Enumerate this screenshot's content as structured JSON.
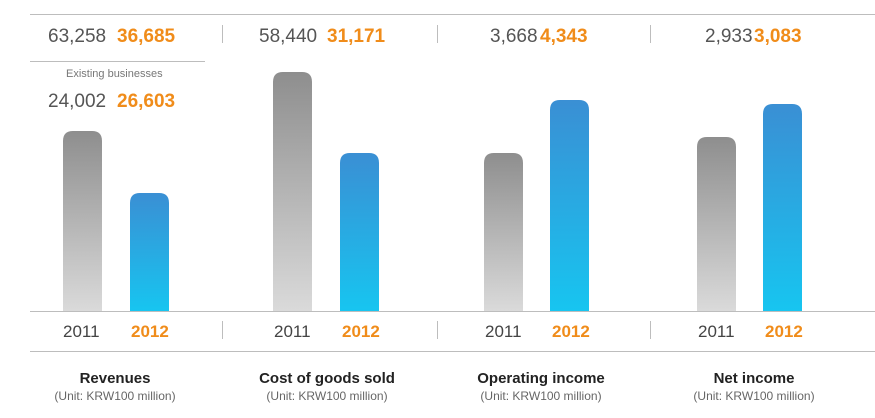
{
  "colors": {
    "bar_2011_top": "#8e8e8e",
    "bar_2011_bottom": "#dadada",
    "bar_2012_top": "#3a8fd4",
    "bar_2012_bottom": "#17c5f0",
    "year_2012_text": "#f08c1a",
    "year_2011_text": "#555555"
  },
  "chart_data": [
    {
      "type": "bar",
      "title": "Revenues",
      "unit": "(Unit: KRW100 million)",
      "categories": [
        "2011",
        "2012"
      ],
      "values": [
        63258,
        36685
      ],
      "value_labels": [
        "63,258",
        "36,685"
      ],
      "sub_series": {
        "name": "Existing businesses",
        "values": [
          24002,
          26603
        ],
        "value_labels": [
          "24,002",
          "26,603"
        ]
      }
    },
    {
      "type": "bar",
      "title": "Cost of goods sold",
      "unit": "(Unit: KRW100 million)",
      "categories": [
        "2011",
        "2012"
      ],
      "values": [
        58440,
        31171
      ],
      "value_labels": [
        "58,440",
        "31,171"
      ]
    },
    {
      "type": "bar",
      "title": "Operating income",
      "unit": "(Unit: KRW100 million)",
      "categories": [
        "2011",
        "2012"
      ],
      "values": [
        3668,
        4343
      ],
      "value_labels": [
        "3,668",
        "4,343"
      ]
    },
    {
      "type": "bar",
      "title": "Net income",
      "unit": "(Unit: KRW100 million)",
      "categories": [
        "2011",
        "2012"
      ],
      "values": [
        2933,
        3083
      ],
      "value_labels": [
        "2,933",
        "3,083"
      ]
    }
  ]
}
